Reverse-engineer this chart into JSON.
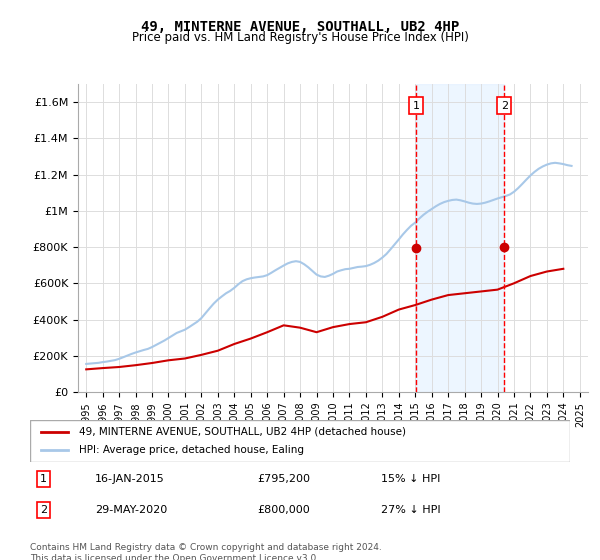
{
  "title": "49, MINTERNE AVENUE, SOUTHALL, UB2 4HP",
  "subtitle": "Price paid vs. HM Land Registry's House Price Index (HPI)",
  "ylabel": "",
  "xlabel": "",
  "ylim": [
    0,
    1700000
  ],
  "yticks": [
    0,
    200000,
    400000,
    600000,
    800000,
    1000000,
    1200000,
    1400000,
    1600000
  ],
  "ytick_labels": [
    "£0",
    "£200K",
    "£400K",
    "£600K",
    "£800K",
    "£1M",
    "£1.2M",
    "£1.4M",
    "£1.6M"
  ],
  "bg_color": "#ffffff",
  "grid_color": "#dddddd",
  "hpi_color": "#a8c8e8",
  "price_color": "#cc0000",
  "marker_color": "#cc0000",
  "shade_color": "#ddeeff",
  "sale1_year": 2015.04,
  "sale1_price": 795200,
  "sale2_year": 2020.41,
  "sale2_price": 800000,
  "legend1": "49, MINTERNE AVENUE, SOUTHALL, UB2 4HP (detached house)",
  "legend2": "HPI: Average price, detached house, Ealing",
  "annotation1_label": "1",
  "annotation1_date": "16-JAN-2015",
  "annotation1_price": "£795,200",
  "annotation1_pct": "15% ↓ HPI",
  "annotation2_label": "2",
  "annotation2_date": "29-MAY-2020",
  "annotation2_price": "£800,000",
  "annotation2_pct": "27% ↓ HPI",
  "footnote": "Contains HM Land Registry data © Crown copyright and database right 2024.\nThis data is licensed under the Open Government Licence v3.0.",
  "hpi_years": [
    1995,
    1995.25,
    1995.5,
    1995.75,
    1996,
    1996.25,
    1996.5,
    1996.75,
    1997,
    1997.25,
    1997.5,
    1997.75,
    1998,
    1998.25,
    1998.5,
    1998.75,
    1999,
    1999.25,
    1999.5,
    1999.75,
    2000,
    2000.25,
    2000.5,
    2000.75,
    2001,
    2001.25,
    2001.5,
    2001.75,
    2002,
    2002.25,
    2002.5,
    2002.75,
    2003,
    2003.25,
    2003.5,
    2003.75,
    2004,
    2004.25,
    2004.5,
    2004.75,
    2005,
    2005.25,
    2005.5,
    2005.75,
    2006,
    2006.25,
    2006.5,
    2006.75,
    2007,
    2007.25,
    2007.5,
    2007.75,
    2008,
    2008.25,
    2008.5,
    2008.75,
    2009,
    2009.25,
    2009.5,
    2009.75,
    2010,
    2010.25,
    2010.5,
    2010.75,
    2011,
    2011.25,
    2011.5,
    2011.75,
    2012,
    2012.25,
    2012.5,
    2012.75,
    2013,
    2013.25,
    2013.5,
    2013.75,
    2014,
    2014.25,
    2014.5,
    2014.75,
    2015,
    2015.25,
    2015.5,
    2015.75,
    2016,
    2016.25,
    2016.5,
    2016.75,
    2017,
    2017.25,
    2017.5,
    2017.75,
    2018,
    2018.25,
    2018.5,
    2018.75,
    2019,
    2019.25,
    2019.5,
    2019.75,
    2020,
    2020.25,
    2020.5,
    2020.75,
    2021,
    2021.25,
    2021.5,
    2021.75,
    2022,
    2022.25,
    2022.5,
    2022.75,
    2023,
    2023.25,
    2023.5,
    2023.75,
    2024,
    2024.25,
    2024.5
  ],
  "hpi_values": [
    155000,
    157000,
    159000,
    161000,
    165000,
    168000,
    172000,
    176000,
    183000,
    192000,
    201000,
    210000,
    218000,
    225000,
    232000,
    238000,
    248000,
    260000,
    272000,
    284000,
    298000,
    312000,
    326000,
    335000,
    344000,
    358000,
    373000,
    388000,
    408000,
    435000,
    462000,
    488000,
    510000,
    528000,
    545000,
    558000,
    575000,
    595000,
    612000,
    622000,
    628000,
    632000,
    635000,
    638000,
    645000,
    658000,
    672000,
    685000,
    698000,
    710000,
    718000,
    722000,
    718000,
    705000,
    688000,
    668000,
    648000,
    638000,
    635000,
    642000,
    652000,
    665000,
    672000,
    678000,
    680000,
    685000,
    690000,
    692000,
    695000,
    702000,
    712000,
    725000,
    742000,
    762000,
    788000,
    815000,
    842000,
    870000,
    895000,
    918000,
    935000,
    958000,
    978000,
    995000,
    1010000,
    1025000,
    1038000,
    1048000,
    1055000,
    1060000,
    1062000,
    1058000,
    1052000,
    1045000,
    1040000,
    1038000,
    1040000,
    1045000,
    1052000,
    1060000,
    1068000,
    1075000,
    1082000,
    1090000,
    1105000,
    1125000,
    1148000,
    1172000,
    1195000,
    1215000,
    1232000,
    1245000,
    1255000,
    1262000,
    1265000,
    1262000,
    1258000,
    1252000,
    1248000
  ],
  "price_years": [
    1995,
    1996,
    1997,
    1998,
    1999,
    2000,
    2001,
    2002,
    2003,
    2004,
    2005,
    2006,
    2007,
    2008,
    2009,
    2010,
    2011,
    2012,
    2013,
    2014,
    2015,
    2016,
    2017,
    2018,
    2019,
    2020,
    2021,
    2022,
    2023,
    2024
  ],
  "price_values": [
    125000,
    132000,
    138000,
    148000,
    160000,
    175000,
    185000,
    205000,
    228000,
    265000,
    295000,
    330000,
    368000,
    355000,
    330000,
    358000,
    375000,
    385000,
    415000,
    455000,
    480000,
    510000,
    535000,
    545000,
    555000,
    565000,
    600000,
    640000,
    665000,
    680000
  ]
}
